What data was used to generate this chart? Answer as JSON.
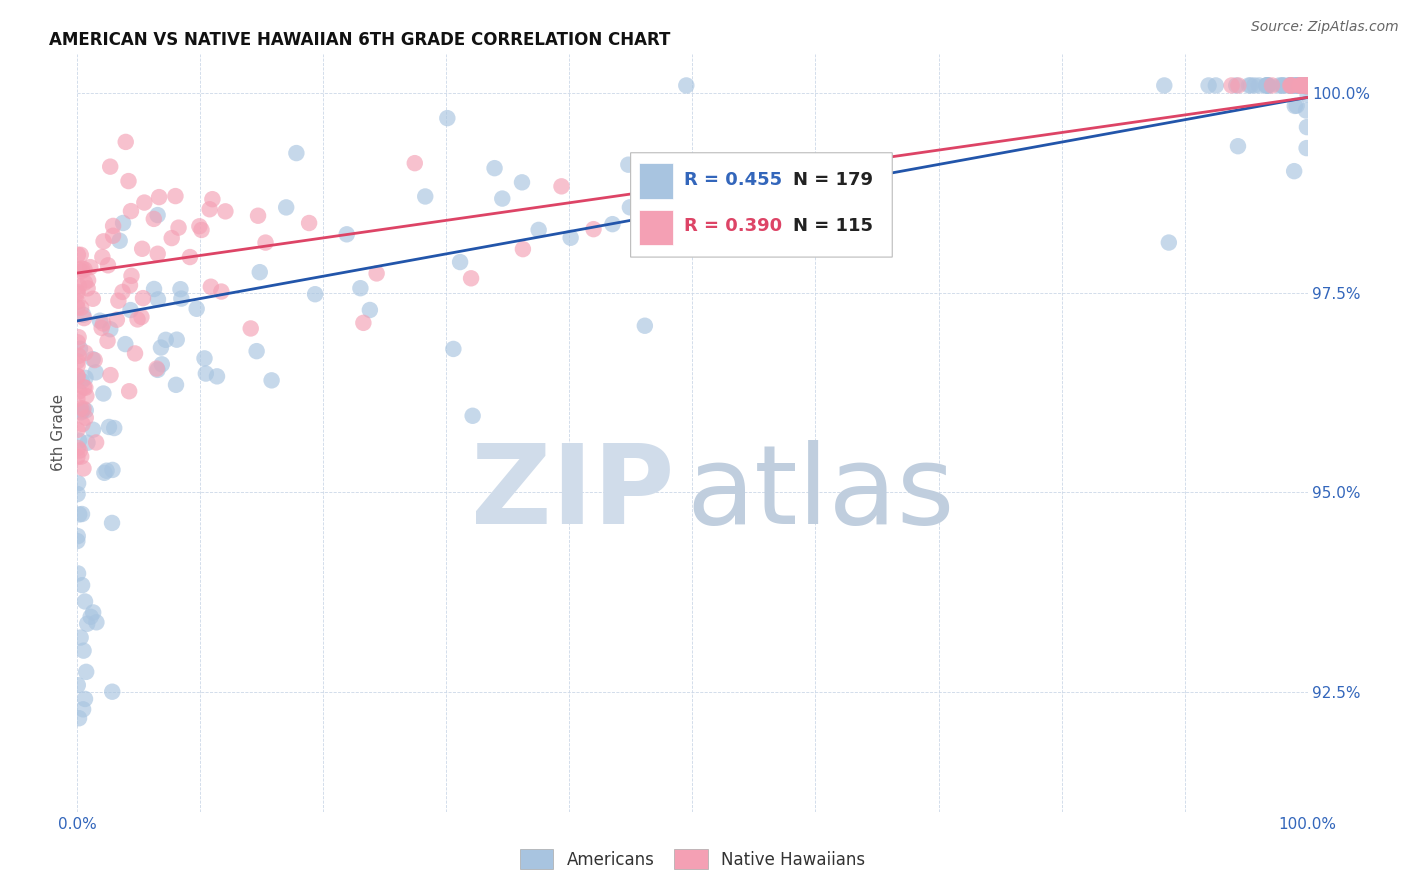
{
  "title": "AMERICAN VS NATIVE HAWAIIAN 6TH GRADE CORRELATION CHART",
  "source": "Source: ZipAtlas.com",
  "ylabel": "6th Grade",
  "xlim": [
    0.0,
    1.0
  ],
  "ylim": [
    0.91,
    1.005
  ],
  "yticks": [
    0.925,
    0.95,
    0.975,
    1.0
  ],
  "ytick_labels": [
    "92.5%",
    "95.0%",
    "97.5%",
    "100.0%"
  ],
  "xtick_labels": [
    "0.0%",
    "",
    "",
    "",
    "",
    "",
    "",
    "",
    "",
    "",
    "100.0%"
  ],
  "blue_R": 0.455,
  "blue_N": 179,
  "pink_R": 0.39,
  "pink_N": 115,
  "blue_color": "#a8c4e0",
  "pink_color": "#f4a0b4",
  "blue_line_color": "#2255aa",
  "pink_line_color": "#dd4466",
  "watermark_zip_color": "#d0dcea",
  "watermark_atlas_color": "#c0cede",
  "title_fontsize": 12,
  "source_fontsize": 10,
  "axis_label_color": "#3366bb",
  "tick_label_color": "#3366bb",
  "background_color": "#ffffff",
  "grid_color": "#ccd8e8",
  "blue_trend_y_start": 0.9715,
  "blue_trend_y_end": 0.9995,
  "pink_trend_y_start": 0.9775,
  "pink_trend_y_end": 0.9995,
  "legend_R_color": "#3366bb",
  "legend_N_color": "#222222"
}
